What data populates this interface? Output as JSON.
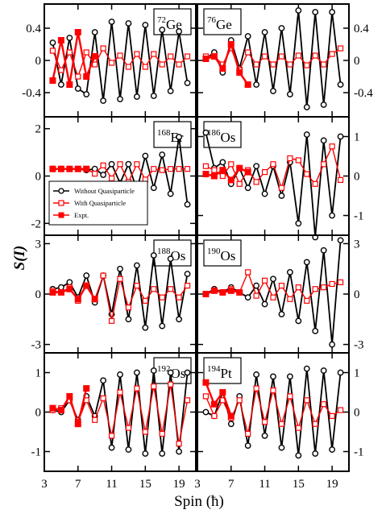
{
  "figure": {
    "ylabel": "S(I)",
    "xlabel": "Spin (ħ)"
  },
  "legend": {
    "entries": [
      {
        "label": "Without Quasiparticle",
        "color": "#000000",
        "marker": "open-circle"
      },
      {
        "label": "With Quasiparticle",
        "color": "#ff0000",
        "marker": "open-square"
      },
      {
        "label": "Expt.",
        "color": "#ff0000",
        "marker": "filled-square"
      }
    ]
  },
  "chart_data": [
    {
      "type": "line",
      "nucleus": "Ge",
      "mass": "72",
      "side": "left",
      "ylim": [
        -0.7,
        0.7
      ],
      "yticks": [
        0.4,
        0,
        -0.4
      ],
      "yticklabels": [
        "0.4",
        "0",
        "-0.4"
      ],
      "series": [
        {
          "name": "Without Quasiparticle",
          "x": [
            4,
            5,
            6,
            7,
            8,
            9,
            10,
            11,
            12,
            13,
            14,
            15,
            16,
            17,
            18,
            19,
            20
          ],
          "y": [
            0.22,
            -0.3,
            0.28,
            -0.35,
            -0.42,
            0.35,
            -0.5,
            0.48,
            -0.48,
            0.46,
            -0.45,
            0.44,
            -0.44,
            0.38,
            -0.38,
            0.36,
            -0.28
          ]
        },
        {
          "name": "With Quasiparticle",
          "x": [
            4,
            5,
            6,
            7,
            8,
            9,
            10,
            11,
            12,
            13,
            14,
            15,
            16,
            17,
            18,
            19,
            20
          ],
          "y": [
            0.12,
            -0.12,
            0.1,
            -0.2,
            0.1,
            -0.05,
            0.15,
            -0.03,
            0.06,
            -0.08,
            0.08,
            -0.08,
            0.08,
            -0.05,
            0.05,
            -0.05,
            0.05
          ]
        },
        {
          "name": "Expt.",
          "x": [
            4,
            5,
            6,
            7,
            8,
            9
          ],
          "y": [
            -0.25,
            0.25,
            -0.3,
            0.35,
            -0.2,
            0.05
          ]
        }
      ]
    },
    {
      "type": "line",
      "nucleus": "Ge",
      "mass": "76",
      "side": "right",
      "ylim": [
        -0.7,
        0.7
      ],
      "yticks": [
        0.4,
        0,
        -0.4
      ],
      "yticklabels": [
        "0.4",
        "0",
        "-0.4"
      ],
      "series": [
        {
          "name": "Without Quasiparticle",
          "x": [
            4,
            5,
            6,
            7,
            8,
            9,
            10,
            11,
            12,
            13,
            14,
            15,
            16,
            17,
            18,
            19,
            20
          ],
          "y": [
            0.02,
            0.1,
            -0.15,
            0.25,
            -0.1,
            0.3,
            -0.3,
            0.35,
            -0.38,
            0.4,
            -0.42,
            0.62,
            -0.58,
            0.6,
            -0.55,
            0.6,
            -0.3
          ]
        },
        {
          "name": "With Quasiparticle",
          "x": [
            4,
            5,
            6,
            7,
            8,
            9,
            10,
            11,
            12,
            13,
            14,
            15,
            16,
            17,
            18,
            19,
            20
          ],
          "y": [
            0.05,
            0.05,
            -0.05,
            0.15,
            -0.12,
            0.1,
            -0.05,
            0.05,
            -0.05,
            0.05,
            -0.05,
            0.06,
            -0.06,
            0.06,
            -0.05,
            0.08,
            0.15
          ]
        },
        {
          "name": "Expt.",
          "x": [
            4,
            5,
            6,
            7,
            8,
            9
          ],
          "y": [
            0.02,
            0.05,
            -0.1,
            0.2,
            -0.15,
            -0.3
          ]
        }
      ]
    },
    {
      "type": "line",
      "nucleus": "Er",
      "mass": "168",
      "side": "left",
      "ylim": [
        -2.5,
        2.5
      ],
      "yticks": [
        2,
        0,
        -2
      ],
      "yticklabels": [
        "2",
        "0",
        "-2"
      ],
      "series": [
        {
          "name": "Without Quasiparticle",
          "x": [
            4,
            5,
            6,
            7,
            8,
            9,
            10,
            11,
            12,
            13,
            14,
            15,
            16,
            17,
            18,
            19,
            20
          ],
          "y": [
            0.3,
            0.3,
            0.3,
            0.3,
            0.25,
            0.3,
            0.05,
            0.5,
            -0.3,
            0.5,
            -0.6,
            0.85,
            -0.5,
            0.9,
            -0.75,
            1.65,
            -1.2
          ]
        },
        {
          "name": "With Quasiparticle",
          "x": [
            4,
            5,
            6,
            7,
            8,
            9,
            10,
            11,
            12,
            13,
            14,
            15,
            16,
            17,
            18,
            19,
            20
          ],
          "y": [
            0.3,
            0.3,
            0.3,
            0.3,
            0.3,
            0.1,
            0.45,
            -0.1,
            0.5,
            -0.25,
            0.5,
            -0.15,
            0.3,
            0.25,
            0.3,
            0.3,
            0.3
          ]
        },
        {
          "name": "Expt.",
          "x": [
            4,
            5,
            6,
            7,
            8
          ],
          "y": [
            0.3,
            0.3,
            0.3,
            0.3,
            0.3
          ]
        }
      ]
    },
    {
      "type": "line",
      "nucleus": "Os",
      "mass": "186",
      "side": "right",
      "ylim": [
        -1.5,
        1.5
      ],
      "yticks": [
        1,
        0,
        -1
      ],
      "yticklabels": [
        "1",
        "0",
        "-1"
      ],
      "series": [
        {
          "name": "Without Quasiparticle",
          "x": [
            4,
            5,
            6,
            7,
            8,
            9,
            10,
            11,
            12,
            13,
            14,
            15,
            16,
            17,
            18,
            19,
            20
          ],
          "y": [
            1.1,
            0.2,
            0.35,
            -0.2,
            0.2,
            -0.3,
            0.25,
            -0.45,
            0.25,
            -0.5,
            0.35,
            -1.2,
            1.05,
            -1.55,
            0.9,
            -1.0,
            1.0
          ]
        },
        {
          "name": "With Quasiparticle",
          "x": [
            4,
            5,
            6,
            7,
            8,
            9,
            10,
            11,
            12,
            13,
            14,
            15,
            16,
            17,
            18,
            19,
            20
          ],
          "y": [
            0.25,
            0.15,
            0.0,
            0.3,
            -0.2,
            0.15,
            -0.15,
            0.1,
            0.3,
            -0.3,
            0.45,
            0.4,
            0.05,
            -0.2,
            0.3,
            0.75,
            -0.1
          ]
        },
        {
          "name": "Expt.",
          "x": [
            4,
            5,
            6,
            7,
            8,
            9
          ],
          "y": [
            0.05,
            0.0,
            0.15,
            -0.1,
            0.2,
            0.1
          ]
        }
      ]
    },
    {
      "type": "line",
      "nucleus": "Os",
      "mass": "188",
      "side": "left",
      "ylim": [
        -3.5,
        3.5
      ],
      "yticks": [
        3,
        0,
        -3
      ],
      "yticklabels": [
        "3",
        "0",
        "-3"
      ],
      "series": [
        {
          "name": "Without Quasiparticle",
          "x": [
            4,
            5,
            6,
            7,
            8,
            9,
            10,
            11,
            12,
            13,
            14,
            15,
            16,
            17,
            18,
            19,
            20
          ],
          "y": [
            0.3,
            0.4,
            0.7,
            -0.2,
            1.1,
            -0.5,
            1.1,
            -1.2,
            1.5,
            -1.5,
            1.7,
            -2.0,
            2.3,
            -1.9,
            2.1,
            -1.5,
            1.2
          ]
        },
        {
          "name": "With Quasiparticle",
          "x": [
            4,
            5,
            6,
            7,
            8,
            9,
            10,
            11,
            12,
            13,
            14,
            15,
            16,
            17,
            18,
            19,
            20
          ],
          "y": [
            0.2,
            0.1,
            0.4,
            -0.4,
            0.5,
            -0.3,
            1.1,
            -1.6,
            0.9,
            -0.8,
            0.5,
            -0.4,
            0.3,
            -0.2,
            0.3,
            -0.2,
            0.5
          ]
        },
        {
          "name": "Expt.",
          "x": [
            4,
            5,
            6,
            7,
            8,
            9
          ],
          "y": [
            0.1,
            0.1,
            0.3,
            -0.3,
            0.5,
            -0.3
          ]
        }
      ]
    },
    {
      "type": "line",
      "nucleus": "Os",
      "mass": "190",
      "side": "right",
      "ylim": [
        -3.5,
        3.5
      ],
      "yticks": [
        3,
        0,
        -3
      ],
      "yticklabels": [
        "3",
        "0",
        "-3"
      ],
      "series": [
        {
          "name": "Without Quasiparticle",
          "x": [
            4,
            5,
            6,
            7,
            8,
            9,
            10,
            11,
            12,
            13,
            14,
            15,
            16,
            17,
            18,
            19,
            20
          ],
          "y": [
            0.0,
            0.3,
            0.1,
            0.4,
            0.1,
            -0.2,
            0.5,
            -0.6,
            0.9,
            -1.2,
            1.3,
            -1.6,
            1.9,
            -2.2,
            2.6,
            -3.0,
            3.2
          ]
        },
        {
          "name": "With Quasiparticle",
          "x": [
            4,
            5,
            6,
            7,
            8,
            9,
            10,
            11,
            12,
            13,
            14,
            15,
            16,
            17,
            18,
            19,
            20
          ],
          "y": [
            0.0,
            0.2,
            0.1,
            0.3,
            0.1,
            1.3,
            -0.1,
            0.8,
            -0.2,
            0.5,
            -0.3,
            0.4,
            -0.4,
            0.3,
            0.4,
            0.6,
            0.7
          ]
        },
        {
          "name": "Expt.",
          "x": [
            4,
            5,
            6,
            7,
            8
          ],
          "y": [
            0.0,
            0.2,
            0.1,
            0.2,
            0.1
          ]
        }
      ]
    },
    {
      "type": "line",
      "nucleus": "Os",
      "mass": "192",
      "side": "left",
      "ylim": [
        -1.5,
        1.5
      ],
      "yticks": [
        1,
        0,
        -1
      ],
      "yticklabels": [
        "1",
        "0",
        "-1"
      ],
      "series": [
        {
          "name": "Without Quasiparticle",
          "x": [
            4,
            5,
            6,
            7,
            8,
            9,
            10,
            11,
            12,
            13,
            14,
            15,
            16,
            17,
            18,
            19,
            20
          ],
          "y": [
            0.05,
            0.0,
            0.3,
            -0.2,
            0.4,
            -0.1,
            0.8,
            -0.9,
            0.95,
            -0.95,
            1.0,
            -1.05,
            1.05,
            -1.05,
            1.0,
            -1.0,
            1.0
          ]
        },
        {
          "name": "With Quasiparticle",
          "x": [
            4,
            5,
            6,
            7,
            8,
            9,
            10,
            11,
            12,
            13,
            14,
            15,
            16,
            17,
            18,
            19,
            20
          ],
          "y": [
            0.05,
            0.1,
            0.3,
            -0.25,
            0.3,
            -0.2,
            0.35,
            -0.6,
            0.5,
            -0.4,
            0.6,
            -0.5,
            0.65,
            -0.55,
            0.7,
            -0.8,
            0.3
          ]
        },
        {
          "name": "Expt.",
          "x": [
            4,
            5,
            6,
            7,
            8
          ],
          "y": [
            0.1,
            0.05,
            0.4,
            -0.3,
            0.6
          ]
        }
      ]
    },
    {
      "type": "line",
      "nucleus": "Pt",
      "mass": "194",
      "side": "right",
      "ylim": [
        -1.5,
        1.5
      ],
      "yticks": [
        1,
        0,
        -1
      ],
      "yticklabels": [
        "1",
        "0",
        "-1"
      ],
      "series": [
        {
          "name": "Without Quasiparticle",
          "x": [
            4,
            5,
            6,
            7,
            8,
            9,
            10,
            11,
            12,
            13,
            14,
            15,
            16,
            17,
            18,
            19,
            20
          ],
          "y": [
            0.0,
            -0.1,
            0.5,
            -0.3,
            0.4,
            -0.85,
            0.95,
            -0.6,
            0.9,
            -0.9,
            0.9,
            -1.1,
            1.1,
            -1.05,
            1.05,
            -0.95,
            1.0
          ]
        },
        {
          "name": "With Quasiparticle",
          "x": [
            4,
            5,
            6,
            7,
            8,
            9,
            10,
            11,
            12,
            13,
            14,
            15,
            16,
            17,
            18,
            19,
            20
          ],
          "y": [
            0.4,
            -0.1,
            0.3,
            -0.15,
            0.3,
            -0.55,
            0.6,
            -0.25,
            0.55,
            -0.3,
            0.4,
            -0.4,
            0.3,
            -0.3,
            0.2,
            -0.1,
            0.05
          ]
        },
        {
          "name": "Expt.",
          "x": [
            4,
            5,
            6,
            7
          ],
          "y": [
            0.75,
            0.2,
            0.5,
            -0.1
          ]
        }
      ]
    }
  ],
  "xaxis": {
    "xlim": [
      3,
      21
    ],
    "ticks": [
      3,
      7,
      11,
      15,
      19
    ],
    "ticklabels": [
      "3",
      "7",
      "11",
      "15",
      "19"
    ]
  }
}
